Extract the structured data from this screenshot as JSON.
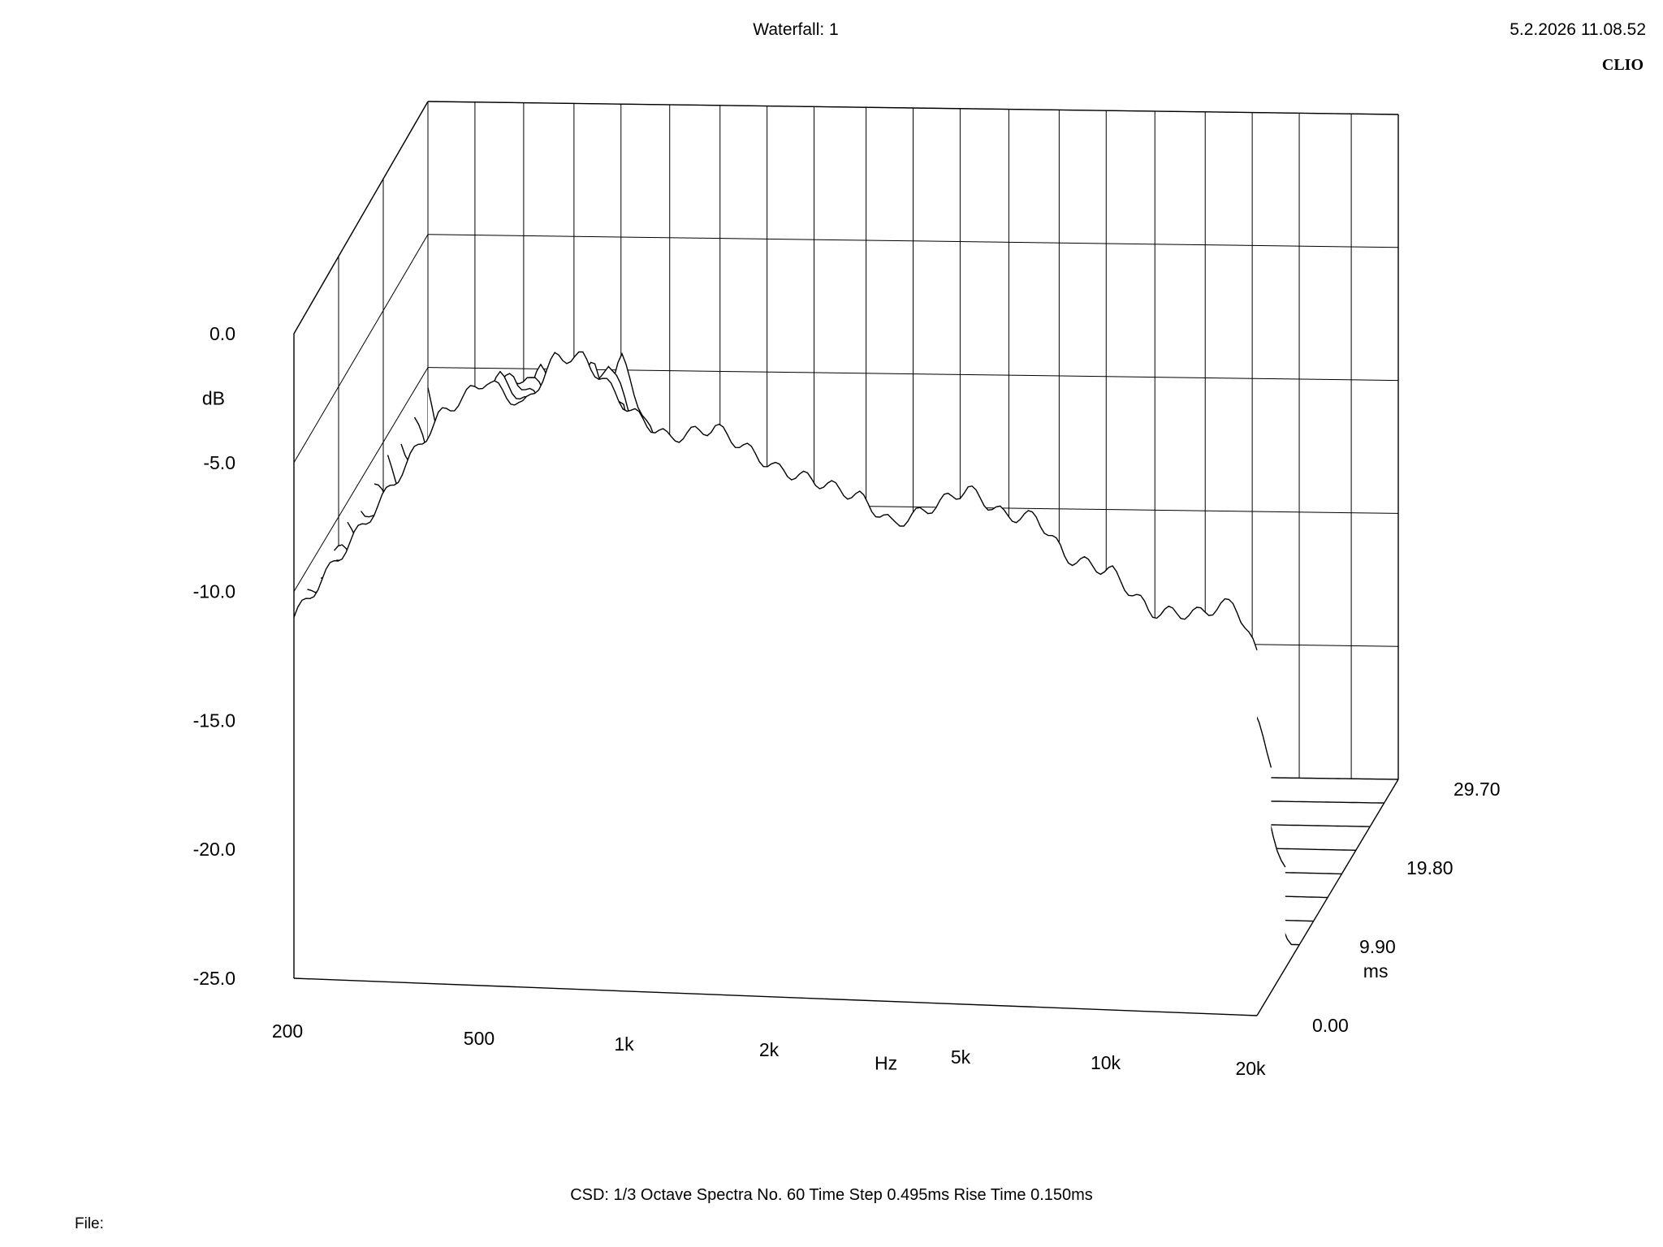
{
  "header": {
    "title": "Waterfall: 1",
    "timestamp": "5.2.2026 11.08.52",
    "brand": "CLIO"
  },
  "footer": {
    "info": "CSD:   1/3 Octave   Spectra No. 60   Time Step 0.495ms   Rise Time 0.150ms",
    "file_label": "File:"
  },
  "chart_data": {
    "type": "waterfall",
    "title": "Waterfall: 1",
    "x_axis": {
      "label": "Hz",
      "scale": "log",
      "range": [
        200,
        20000
      ],
      "ticks": [
        200,
        500,
        1000,
        2000,
        5000,
        10000,
        20000
      ],
      "tick_labels": [
        "200",
        "500",
        "1k",
        "2k",
        "5k",
        "10k",
        "20k"
      ]
    },
    "y_axis": {
      "label": "dB",
      "range": [
        -25,
        0
      ],
      "ticks": [
        0,
        -5,
        -10,
        -15,
        -20,
        -25
      ],
      "tick_labels": [
        "0.0",
        "-5.0",
        "-10.0",
        "-15.0",
        "-20.0",
        "-25.0"
      ]
    },
    "z_axis": {
      "label": "ms",
      "range": [
        0,
        29.7
      ],
      "ticks": [
        0,
        9.9,
        19.8,
        29.7
      ],
      "tick_labels": [
        "0.00",
        "9.90",
        "19.80",
        "29.70"
      ]
    },
    "spectra_count": 60,
    "time_step_ms": 0.495,
    "rise_time_ms": 0.15,
    "resolution": "1/3 Octave",
    "slices_drawn_ms": [
      0,
      2.97,
      5.94,
      8.91,
      11.88,
      14.85,
      17.82,
      20.79,
      23.76,
      26.73,
      29.7
    ],
    "front_spectrum": [
      [
        200,
        -11.0
      ],
      [
        250,
        -8.5
      ],
      [
        300,
        -6.5
      ],
      [
        400,
        -3.0
      ],
      [
        500,
        -1.5
      ],
      [
        600,
        -2.5
      ],
      [
        700,
        -0.5
      ],
      [
        800,
        -0.5
      ],
      [
        1000,
        -2.5
      ],
      [
        1200,
        -3.5
      ],
      [
        1500,
        -3.0
      ],
      [
        2000,
        -4.5
      ],
      [
        2500,
        -5.0
      ],
      [
        3000,
        -5.5
      ],
      [
        3500,
        -6.5
      ],
      [
        4000,
        -6.0
      ],
      [
        5000,
        -5.0
      ],
      [
        6000,
        -6.0
      ],
      [
        7000,
        -6.0
      ],
      [
        8000,
        -7.5
      ],
      [
        10000,
        -8.0
      ],
      [
        12000,
        -9.5
      ],
      [
        15000,
        -9.5
      ],
      [
        18000,
        -9.0
      ],
      [
        20000,
        -11.0
      ]
    ],
    "decay_profile": [
      [
        200,
        0.0
      ],
      [
        300,
        0.6
      ],
      [
        400,
        0.4
      ],
      [
        500,
        0.3
      ],
      [
        600,
        0.4
      ],
      [
        700,
        0.5
      ],
      [
        800,
        0.6
      ],
      [
        1000,
        1.5
      ],
      [
        1200,
        2.5
      ],
      [
        1500,
        2.6
      ],
      [
        2000,
        2.2
      ],
      [
        2500,
        2.6
      ],
      [
        3000,
        1.8
      ],
      [
        4000,
        1.6
      ],
      [
        5000,
        1.8
      ],
      [
        6000,
        1.8
      ],
      [
        8000,
        2.0
      ],
      [
        10000,
        2.2
      ],
      [
        12000,
        2.3
      ],
      [
        15000,
        2.0
      ],
      [
        18000,
        1.8
      ],
      [
        20000,
        1.9
      ]
    ],
    "floor_db": -25
  }
}
